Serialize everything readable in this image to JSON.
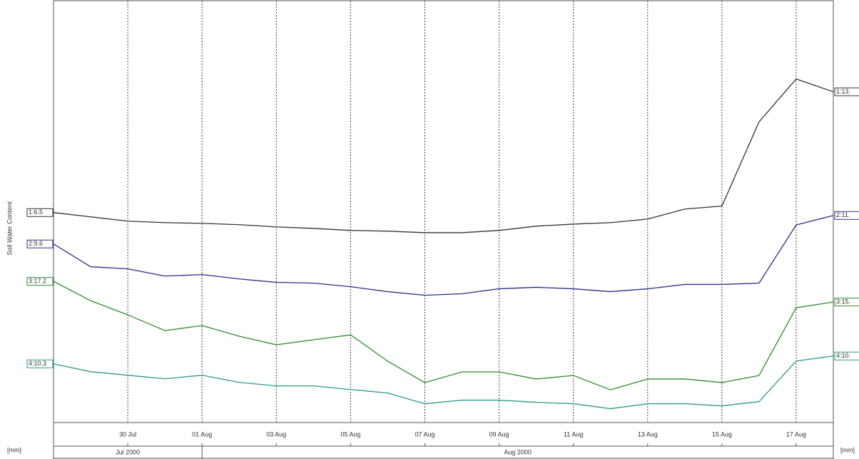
{
  "chart_data": {
    "type": "line",
    "y_label": "Soil Water Content",
    "unit_left": "[mm]",
    "unit_right": "[mm]",
    "x": [
      "2000-07-28",
      "2000-07-29",
      "2000-07-30",
      "2000-07-31",
      "2000-08-01",
      "2000-08-02",
      "2000-08-03",
      "2000-08-04",
      "2000-08-05",
      "2000-08-06",
      "2000-08-07",
      "2000-08-08",
      "2000-08-09",
      "2000-08-10",
      "2000-08-11",
      "2000-08-12",
      "2000-08-13",
      "2000-08-14",
      "2000-08-15",
      "2000-08-16",
      "2000-08-17",
      "2000-08-18"
    ],
    "xlim": [
      "2000-07-28",
      "2000-08-18"
    ],
    "xticks": [
      {
        "value": "2000-07-30",
        "label": "30 Jul"
      },
      {
        "value": "2000-08-01",
        "label": "01 Aug"
      },
      {
        "value": "2000-08-03",
        "label": "03 Aug"
      },
      {
        "value": "2000-08-05",
        "label": "05 Aug"
      },
      {
        "value": "2000-08-07",
        "label": "07 Aug"
      },
      {
        "value": "2000-08-09",
        "label": "09 Aug"
      },
      {
        "value": "2000-08-11",
        "label": "11 Aug"
      },
      {
        "value": "2000-08-13",
        "label": "13 Aug"
      },
      {
        "value": "2000-08-15",
        "label": "15 Aug"
      },
      {
        "value": "2000-08-17",
        "label": "17 Aug"
      }
    ],
    "months": [
      {
        "label": "Jul 2000",
        "start": "2000-07-28",
        "end": "2000-08-01"
      },
      {
        "label": "Aug 2000",
        "start": "2000-08-01",
        "end": "2000-08-18"
      }
    ],
    "grid": true,
    "series": [
      {
        "start_label": "1:6.5",
        "end_label": "1:13.",
        "color": "#333333",
        "ylim": [
          -4.8,
          17.9
        ],
        "values": [
          6.5,
          6.27,
          6.04,
          5.96,
          5.92,
          5.85,
          5.73,
          5.65,
          5.54,
          5.5,
          5.42,
          5.42,
          5.54,
          5.77,
          5.88,
          5.96,
          6.15,
          6.69,
          6.85,
          11.38,
          13.69,
          13.0
        ]
      },
      {
        "start_label": "2:9.6",
        "end_label": "2:11.",
        "color": "#2b2b8c",
        "ylim": [
          0.2,
          22.4
        ],
        "values": [
          9.6,
          8.4,
          8.29,
          7.91,
          7.99,
          7.76,
          7.58,
          7.54,
          7.35,
          7.09,
          6.9,
          6.98,
          7.24,
          7.32,
          7.24,
          7.09,
          7.24,
          7.47,
          7.47,
          7.54,
          10.6,
          11.1
        ]
      },
      {
        "start_label": "3:17.2",
        "end_label": "3:15.",
        "color": "#2e8b2e",
        "ylim": [
          2.2,
          47.0
        ],
        "values": [
          17.2,
          15.15,
          13.64,
          11.97,
          12.5,
          11.37,
          10.46,
          10.99,
          11.52,
          8.72,
          6.44,
          7.58,
          7.58,
          6.83,
          7.2,
          5.68,
          6.83,
          6.83,
          6.45,
          7.2,
          14.4,
          15.0
        ]
      },
      {
        "start_label": "4:10.3",
        "end_label": "4:10.",
        "color": "#2a9a8a",
        "ylim": [
          7.0,
          30.7
        ],
        "values": [
          10.3,
          9.86,
          9.66,
          9.46,
          9.66,
          9.26,
          9.06,
          9.06,
          8.86,
          8.66,
          8.06,
          8.26,
          8.26,
          8.14,
          8.06,
          7.78,
          8.06,
          8.06,
          7.94,
          8.18,
          10.46,
          10.74
        ]
      }
    ]
  }
}
